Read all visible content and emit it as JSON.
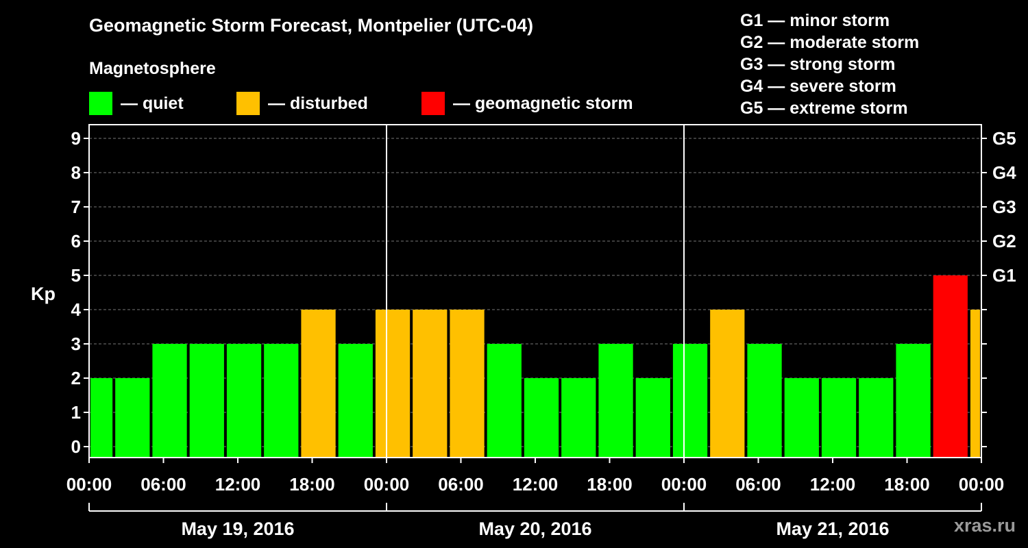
{
  "title": "Geomagnetic Storm Forecast, Montpelier (UTC-04)",
  "legend": {
    "heading": "Magnetosphere",
    "items": [
      {
        "label": "— quiet",
        "color": "#00ff00"
      },
      {
        "label": "— disturbed",
        "color": "#ffc000"
      },
      {
        "label": "— geomagnetic storm",
        "color": "#ff0000"
      }
    ]
  },
  "g_scale": [
    "G1 — minor storm",
    "G2 — moderate storm",
    "G3 — strong storm",
    "G4 — severe storm",
    "G5 — extreme storm"
  ],
  "watermark": "xras.ru",
  "colors": {
    "quiet": "#00ff00",
    "disturbed": "#ffc000",
    "storm": "#ff0000",
    "background": "#000000"
  },
  "chart_data": {
    "type": "bar",
    "ylabel": "Kp",
    "ylim": [
      0,
      9
    ],
    "y_ticks": [
      "0",
      "1",
      "2",
      "3",
      "4",
      "5",
      "6",
      "7",
      "8",
      "9"
    ],
    "right_axis_labels": [
      {
        "kp": 5,
        "label": "G1"
      },
      {
        "kp": 6,
        "label": "G2"
      },
      {
        "kp": 7,
        "label": "G3"
      },
      {
        "kp": 8,
        "label": "G4"
      },
      {
        "kp": 9,
        "label": "G5"
      }
    ],
    "x_tick_labels": [
      "00:00",
      "06:00",
      "12:00",
      "18:00",
      "00:00",
      "06:00",
      "12:00",
      "18:00",
      "00:00",
      "06:00",
      "12:00",
      "18:00",
      "00:00"
    ],
    "x_tick_hours": [
      0,
      6,
      12,
      18,
      24,
      30,
      36,
      42,
      48,
      54,
      60,
      66,
      72
    ],
    "day_labels": [
      "May 19, 2016",
      "May 20, 2016",
      "May 21, 2016"
    ],
    "day_start_hours": [
      0,
      24,
      48,
      72
    ],
    "xlim_hours": [
      0,
      72
    ],
    "bars": [
      {
        "start_hour": 0,
        "end_hour": 2,
        "kp": 2,
        "status": "quiet"
      },
      {
        "start_hour": 2,
        "end_hour": 5,
        "kp": 2,
        "status": "quiet"
      },
      {
        "start_hour": 5,
        "end_hour": 8,
        "kp": 3,
        "status": "quiet"
      },
      {
        "start_hour": 8,
        "end_hour": 11,
        "kp": 3,
        "status": "quiet"
      },
      {
        "start_hour": 11,
        "end_hour": 14,
        "kp": 3,
        "status": "quiet"
      },
      {
        "start_hour": 14,
        "end_hour": 17,
        "kp": 3,
        "status": "quiet"
      },
      {
        "start_hour": 17,
        "end_hour": 20,
        "kp": 4,
        "status": "disturbed"
      },
      {
        "start_hour": 20,
        "end_hour": 23,
        "kp": 3,
        "status": "quiet"
      },
      {
        "start_hour": 23,
        "end_hour": 26,
        "kp": 4,
        "status": "disturbed"
      },
      {
        "start_hour": 26,
        "end_hour": 29,
        "kp": 4,
        "status": "disturbed"
      },
      {
        "start_hour": 29,
        "end_hour": 32,
        "kp": 4,
        "status": "disturbed"
      },
      {
        "start_hour": 32,
        "end_hour": 35,
        "kp": 3,
        "status": "quiet"
      },
      {
        "start_hour": 35,
        "end_hour": 38,
        "kp": 2,
        "status": "quiet"
      },
      {
        "start_hour": 38,
        "end_hour": 41,
        "kp": 2,
        "status": "quiet"
      },
      {
        "start_hour": 41,
        "end_hour": 44,
        "kp": 3,
        "status": "quiet"
      },
      {
        "start_hour": 44,
        "end_hour": 47,
        "kp": 2,
        "status": "quiet"
      },
      {
        "start_hour": 47,
        "end_hour": 50,
        "kp": 3,
        "status": "quiet"
      },
      {
        "start_hour": 50,
        "end_hour": 53,
        "kp": 4,
        "status": "disturbed"
      },
      {
        "start_hour": 53,
        "end_hour": 56,
        "kp": 3,
        "status": "quiet"
      },
      {
        "start_hour": 56,
        "end_hour": 59,
        "kp": 2,
        "status": "quiet"
      },
      {
        "start_hour": 59,
        "end_hour": 62,
        "kp": 2,
        "status": "quiet"
      },
      {
        "start_hour": 62,
        "end_hour": 65,
        "kp": 2,
        "status": "quiet"
      },
      {
        "start_hour": 65,
        "end_hour": 68,
        "kp": 3,
        "status": "quiet"
      },
      {
        "start_hour": 68,
        "end_hour": 71,
        "kp": 5,
        "status": "storm"
      },
      {
        "start_hour": 71,
        "end_hour": 72,
        "kp": 4,
        "status": "disturbed"
      }
    ],
    "grid": "dashed horizontal at each Kp level"
  }
}
